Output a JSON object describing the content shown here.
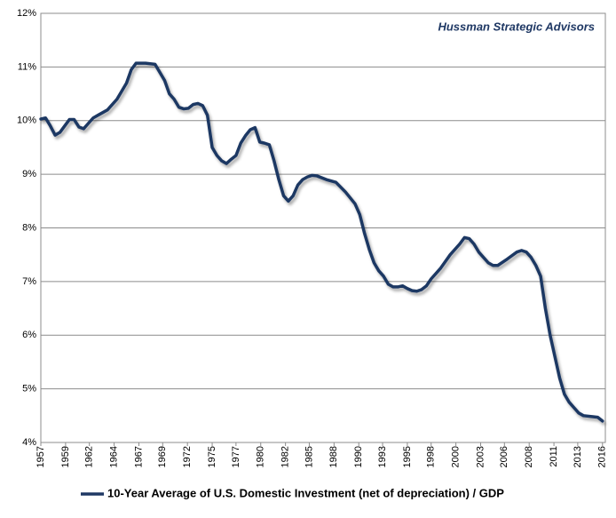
{
  "chart_data": {
    "type": "line",
    "annotation": "Hussman Strategic Advisors",
    "xlim": [
      1957,
      2016.3
    ],
    "ylim": [
      4,
      12
    ],
    "yticks": [
      {
        "value": 4,
        "label": "4%"
      },
      {
        "value": 5,
        "label": "5%"
      },
      {
        "value": 6,
        "label": "6%"
      },
      {
        "value": 7,
        "label": "7%"
      },
      {
        "value": 8,
        "label": "8%"
      },
      {
        "value": 9,
        "label": "9%"
      },
      {
        "value": 10,
        "label": "10%"
      },
      {
        "value": 11,
        "label": "11%"
      },
      {
        "value": 12,
        "label": "12%"
      }
    ],
    "xticks": [
      {
        "value": 1957.0,
        "label": "1957"
      },
      {
        "value": 1959.6,
        "label": "1959"
      },
      {
        "value": 1962.1,
        "label": "1962"
      },
      {
        "value": 1964.7,
        "label": "1964"
      },
      {
        "value": 1967.3,
        "label": "1967"
      },
      {
        "value": 1969.8,
        "label": "1969"
      },
      {
        "value": 1972.4,
        "label": "1972"
      },
      {
        "value": 1975.0,
        "label": "1975"
      },
      {
        "value": 1977.5,
        "label": "1977"
      },
      {
        "value": 1980.1,
        "label": "1980"
      },
      {
        "value": 1982.7,
        "label": "1982"
      },
      {
        "value": 1985.2,
        "label": "1985"
      },
      {
        "value": 1987.8,
        "label": "1988"
      },
      {
        "value": 1990.4,
        "label": "1990"
      },
      {
        "value": 1992.9,
        "label": "1993"
      },
      {
        "value": 1995.5,
        "label": "1995"
      },
      {
        "value": 1998.0,
        "label": "1998"
      },
      {
        "value": 2000.6,
        "label": "2000"
      },
      {
        "value": 2003.2,
        "label": "2003"
      },
      {
        "value": 2005.7,
        "label": "2006"
      },
      {
        "value": 2008.3,
        "label": "2008"
      },
      {
        "value": 2010.9,
        "label": "2011"
      },
      {
        "value": 2013.4,
        "label": "2013"
      },
      {
        "value": 2016.0,
        "label": "2016"
      }
    ],
    "grid": true,
    "legend": "bottom",
    "x": [
      1957.0,
      1957.5,
      1958.0,
      1958.5,
      1959.0,
      1959.5,
      1960.0,
      1960.5,
      1961.0,
      1961.5,
      1962.0,
      1962.5,
      1963.0,
      1964.0,
      1965.0,
      1966.0,
      1966.5,
      1967.0,
      1968.0,
      1969.0,
      1970.0,
      1970.5,
      1971.0,
      1971.5,
      1972.0,
      1972.5,
      1973.0,
      1973.5,
      1974.0,
      1974.5,
      1975.0,
      1975.5,
      1976.0,
      1976.5,
      1977.0,
      1977.5,
      1978.0,
      1978.5,
      1979.0,
      1979.5,
      1980.0,
      1980.5,
      1981.0,
      1981.5,
      1982.0,
      1982.5,
      1983.0,
      1983.5,
      1984.0,
      1984.5,
      1985.0,
      1985.5,
      1986.0,
      1987.0,
      1988.0,
      1989.0,
      1990.0,
      1990.5,
      1991.0,
      1991.5,
      1992.0,
      1992.5,
      1993.0,
      1993.5,
      1994.0,
      1994.5,
      1995.0,
      1995.5,
      1996.0,
      1996.5,
      1997.0,
      1997.5,
      1998.0,
      1999.0,
      2000.0,
      2001.0,
      2001.5,
      2002.0,
      2002.5,
      2003.0,
      2004.0,
      2004.5,
      2005.0,
      2006.0,
      2007.0,
      2007.5,
      2008.0,
      2008.5,
      2009.0,
      2009.5,
      2010.0,
      2010.5,
      2011.0,
      2011.5,
      2012.0,
      2012.5,
      2013.0,
      2013.5,
      2014.0,
      2015.0,
      2015.5,
      2016.0
    ],
    "series": [
      {
        "name": "10-Year Average of U.S. Domestic Investment (net of depreciation) / GDP",
        "color": "#1f3864",
        "values": [
          10.03,
          10.05,
          9.9,
          9.73,
          9.78,
          9.9,
          10.02,
          10.02,
          9.88,
          9.85,
          9.95,
          10.05,
          10.1,
          10.2,
          10.4,
          10.7,
          10.95,
          11.07,
          11.07,
          11.05,
          10.75,
          10.5,
          10.4,
          10.25,
          10.22,
          10.23,
          10.3,
          10.32,
          10.28,
          10.1,
          9.5,
          9.35,
          9.25,
          9.2,
          9.28,
          9.35,
          9.58,
          9.72,
          9.83,
          9.87,
          9.6,
          9.58,
          9.55,
          9.25,
          8.9,
          8.6,
          8.5,
          8.6,
          8.8,
          8.9,
          8.95,
          8.98,
          8.97,
          8.9,
          8.85,
          8.67,
          8.45,
          8.25,
          7.9,
          7.6,
          7.35,
          7.2,
          7.1,
          6.95,
          6.9,
          6.9,
          6.92,
          6.87,
          6.83,
          6.82,
          6.85,
          6.92,
          7.05,
          7.25,
          7.5,
          7.7,
          7.82,
          7.8,
          7.7,
          7.55,
          7.35,
          7.3,
          7.3,
          7.42,
          7.55,
          7.58,
          7.55,
          7.45,
          7.3,
          7.1,
          6.5,
          6.0,
          5.6,
          5.2,
          4.9,
          4.75,
          4.65,
          4.55,
          4.5,
          4.48,
          4.47,
          4.4
        ]
      }
    ]
  }
}
